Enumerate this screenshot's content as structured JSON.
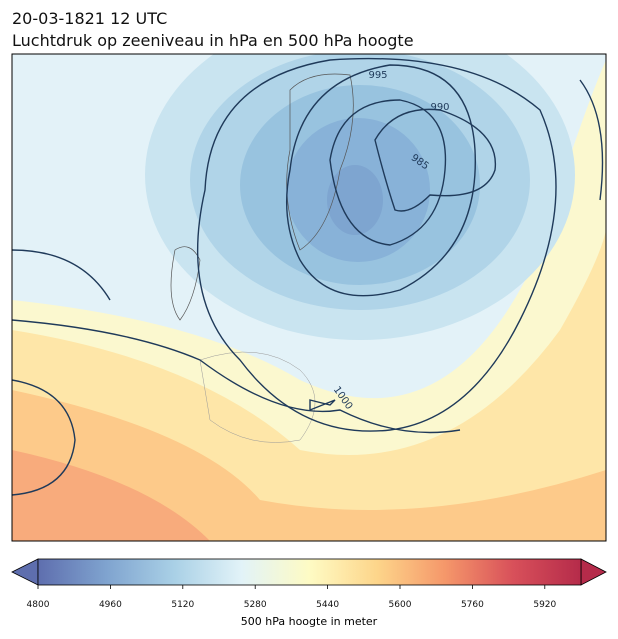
{
  "title": "20-03-1821 12 UTC",
  "subtitle": "Luchtdruk op zeeniveau in hPa en 500 hPa hoogte",
  "contour_labels": [
    995,
    990,
    985,
    1000
  ],
  "colorbar": {
    "label": "500 hPa hoogte in meter",
    "lim": [
      4800,
      6000
    ],
    "ticks": [
      4800,
      4960,
      5120,
      5280,
      5440,
      5600,
      5760,
      5920
    ],
    "colors": [
      "#5e6eae",
      "#7fa3cf",
      "#a9d0e6",
      "#e2f3f8",
      "#fefbc4",
      "#fdd58a",
      "#f5976a",
      "#d8505a",
      "#b52b4a"
    ]
  }
}
